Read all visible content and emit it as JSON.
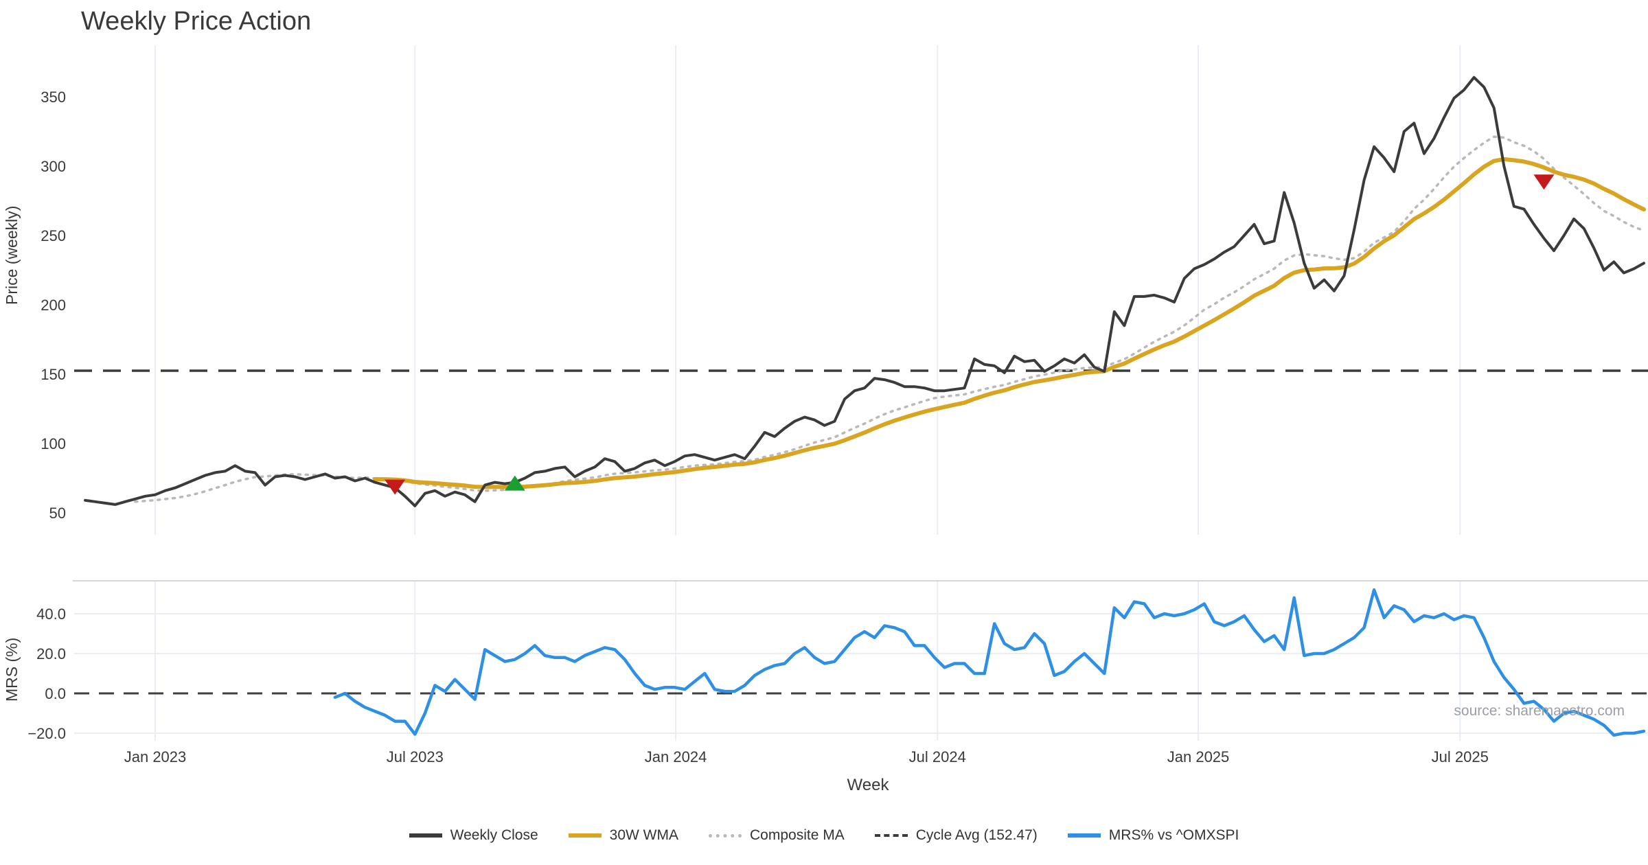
{
  "title": "Weekly Price Action",
  "source_text": "source: sharemaestro.com",
  "axes": {
    "price_label": "Price (weekly)",
    "mrs_label": "MRS (%)",
    "x_label": "Week",
    "price_ticks": [
      50,
      100,
      150,
      200,
      250,
      300,
      350
    ],
    "mrs_ticks": [
      {
        "value": 40,
        "label": "40.0"
      },
      {
        "value": 20,
        "label": "20.0"
      },
      {
        "value": 0,
        "label": "0.0"
      },
      {
        "value": -20,
        "label": "−20.0"
      }
    ],
    "x_ticks": [
      {
        "week": 0,
        "label": "Jan 2023"
      },
      {
        "week": 26,
        "label": "Jul 2023"
      },
      {
        "week": 52.1,
        "label": "Jan 2024"
      },
      {
        "week": 78.3,
        "label": "Jul 2024"
      },
      {
        "week": 104.4,
        "label": "Jan 2025"
      },
      {
        "week": 130.6,
        "label": "Jul 2025"
      }
    ]
  },
  "legend": [
    {
      "label": "Weekly Close",
      "swatch": "sw-solid-dark"
    },
    {
      "label": "30W WMA",
      "swatch": "sw-solid-gold"
    },
    {
      "label": "Composite MA",
      "swatch": "sw-dotted"
    },
    {
      "label": "Cycle Avg (152.47)",
      "swatch": "sw-dashed"
    },
    {
      "label": "MRS% vs ^OMXSPI",
      "swatch": "sw-solid-blue"
    }
  ],
  "colors": {
    "weekly_close": "#3b3b3b",
    "wma_30w": "#d9a521",
    "composite_ma": "#b9b9b9",
    "cycle_avg": "#3a3a3a",
    "mrs": "#2e90e5",
    "sell_marker": "#c61a1a",
    "buy_marker": "#1c9e31",
    "gridline": "#e9eef4",
    "mrs_gridline": "#ececf1",
    "panel_border": "#d5d5da",
    "text": "#3a3a3a",
    "source": "#9b9ea4"
  },
  "chart_data": {
    "type": "line",
    "x_unit": "week_index_from_2023-01",
    "panels": [
      {
        "name": "price",
        "ylabel": "Price (weekly)",
        "ylim": [
          40,
          380
        ],
        "grid": "vertical"
      },
      {
        "name": "mrs",
        "ylabel": "MRS (%)",
        "ylim": [
          -26,
          56
        ],
        "grid": "both"
      }
    ],
    "series": {
      "weekly_close": {
        "panel": "price",
        "start_week": -7,
        "values": [
          59,
          58,
          57,
          56,
          58,
          60,
          62,
          63,
          66,
          68,
          71,
          74,
          77,
          79,
          80,
          84,
          80,
          79,
          70,
          76,
          77,
          76,
          74,
          76,
          78,
          75,
          76,
          73,
          75,
          72,
          70,
          68,
          62,
          55,
          64,
          66,
          62,
          65,
          63,
          58,
          70,
          72,
          71,
          72,
          75,
          79,
          80,
          82,
          83,
          76,
          80,
          83,
          89,
          87,
          80,
          82,
          86,
          88,
          84,
          87,
          91,
          92,
          90,
          88,
          90,
          92,
          89,
          98,
          108,
          105,
          111,
          116,
          119,
          117,
          113,
          116,
          132,
          138,
          140,
          147,
          146,
          144,
          141,
          141,
          140,
          138,
          138,
          139,
          140,
          161,
          157,
          156,
          151,
          163,
          159,
          160,
          152,
          156,
          161,
          158,
          164,
          155,
          152,
          195,
          185,
          206,
          206,
          207,
          205,
          202,
          219,
          226,
          229,
          233,
          238,
          242,
          250,
          258,
          244,
          246,
          281,
          259,
          230,
          212,
          218,
          210,
          221,
          254,
          290,
          314,
          306,
          296,
          325,
          331,
          309,
          320,
          335,
          349,
          355,
          364,
          357,
          342,
          300,
          271,
          269,
          258,
          248,
          239,
          250,
          262,
          255,
          241,
          225,
          231,
          223,
          226,
          230
        ]
      },
      "wma_30w": {
        "panel": "price",
        "derived_from": "weekly_close",
        "method": "30-week linearly weighted moving average",
        "start_week": 22
      },
      "composite_ma": {
        "panel": "price",
        "derived_from": "weekly_close",
        "method": "average of 10-week SMA and 30W WMA",
        "start_week": -2
      },
      "cycle_avg": {
        "panel": "price",
        "value": 152.47,
        "style": "dashed-horizontal"
      },
      "mrs_pct": {
        "panel": "mrs",
        "start_week": 18,
        "values": [
          -2,
          0,
          -4,
          -7,
          -9,
          -11,
          -14,
          -14,
          -20.5,
          -10,
          4,
          1,
          7,
          2,
          -3,
          22,
          19,
          16,
          17,
          20,
          24,
          19,
          18,
          18,
          16,
          19,
          21,
          23,
          22,
          17,
          10,
          4,
          2,
          3,
          3,
          2,
          6,
          10,
          2,
          1,
          1,
          4,
          9,
          12,
          14,
          15,
          20,
          23,
          18,
          15,
          16,
          22,
          28,
          31,
          28,
          34,
          33,
          31,
          24,
          24,
          18,
          13,
          15,
          15,
          10,
          10,
          35,
          25,
          22,
          23,
          30,
          25,
          9,
          11,
          16,
          20,
          15,
          10,
          43,
          38,
          46,
          45,
          38,
          40,
          39,
          40,
          42,
          45,
          36,
          34,
          36,
          39,
          32,
          26,
          29,
          22,
          48,
          19,
          20,
          20,
          22,
          25,
          28,
          33,
          52,
          38,
          44,
          42,
          36,
          39,
          38,
          40,
          37,
          39,
          38,
          28,
          16,
          8,
          2,
          -5,
          -4,
          -8,
          -14,
          -10,
          -9,
          -11,
          -13,
          -16,
          -21,
          -20,
          -20,
          -19
        ]
      }
    },
    "markers": [
      {
        "week": 24,
        "price": 69,
        "type": "sell",
        "shape": "triangle-down",
        "color": "#c61a1a"
      },
      {
        "week": 36,
        "price": 71,
        "type": "buy",
        "shape": "triangle-up",
        "color": "#1c9e31"
      },
      {
        "week": 139,
        "price": 289,
        "type": "sell",
        "shape": "triangle-down",
        "color": "#c61a1a"
      }
    ],
    "zero_line": {
      "panel": "mrs",
      "value": 0,
      "style": "dashed-horizontal"
    }
  }
}
